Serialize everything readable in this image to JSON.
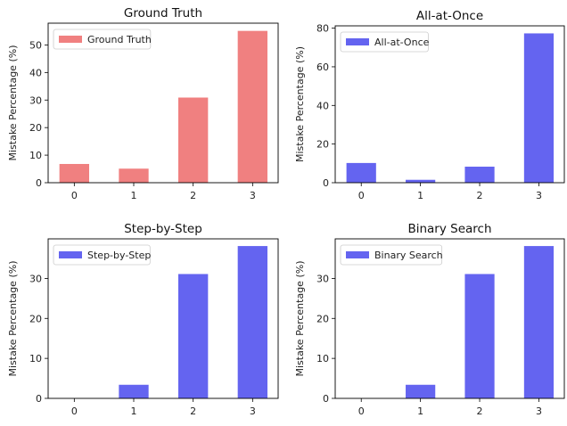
{
  "chart_data": [
    {
      "type": "bar",
      "title": "Ground Truth",
      "ylabel": "Mistake Percentage (%)",
      "xlabel": "",
      "categories": [
        "0",
        "1",
        "2",
        "3"
      ],
      "series": [
        {
          "name": "Ground Truth",
          "values": [
            6.8,
            5.1,
            30.9,
            55.1
          ],
          "color": "#f08080"
        }
      ],
      "ylim": [
        0,
        57.9
      ],
      "yticks": [
        0,
        10,
        20,
        30,
        40,
        50
      ],
      "legend": "top-left",
      "grid": false
    },
    {
      "type": "bar",
      "title": "All-at-Once",
      "ylabel": "Mistake Percentage (%)",
      "xlabel": "",
      "categories": [
        "0",
        "1",
        "2",
        "3"
      ],
      "series": [
        {
          "name": "All-at-Once",
          "values": [
            10.2,
            1.5,
            8.3,
            77.3
          ],
          "color": "#6464f0"
        }
      ],
      "ylim": [
        0,
        81.2
      ],
      "yticks": [
        0,
        20,
        40,
        60,
        80
      ],
      "legend": "top-left",
      "grid": false
    },
    {
      "type": "bar",
      "title": "Step-by-Step",
      "ylabel": "Mistake Percentage (%)",
      "xlabel": "",
      "categories": [
        "0",
        "1",
        "2",
        "3"
      ],
      "series": [
        {
          "name": "Step-by-Step",
          "values": [
            0,
            3.4,
            31.1,
            38.1
          ],
          "color": "#6464f0"
        }
      ],
      "ylim": [
        0,
        39.9
      ],
      "yticks": [
        0,
        10,
        20,
        30
      ],
      "legend": "top-left",
      "grid": false
    },
    {
      "type": "bar",
      "title": "Binary Search",
      "ylabel": "Mistake Percentage (%)",
      "xlabel": "",
      "categories": [
        "0",
        "1",
        "2",
        "3"
      ],
      "series": [
        {
          "name": "Binary Search",
          "values": [
            0,
            3.4,
            31.1,
            38.1
          ],
          "color": "#6464f0"
        }
      ],
      "ylim": [
        0,
        39.9
      ],
      "yticks": [
        0,
        10,
        20,
        30
      ],
      "legend": "top-left",
      "grid": false
    }
  ]
}
